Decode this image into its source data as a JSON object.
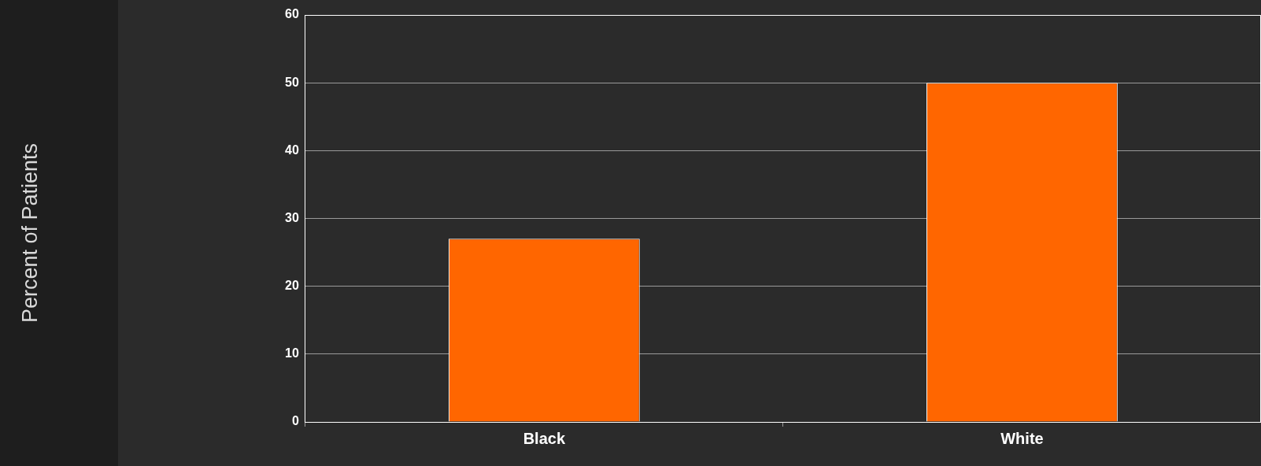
{
  "chart_data": {
    "type": "bar",
    "annotations": [
      "Percent of Patients"
    ],
    "categories": [
      "Black",
      "White"
    ],
    "values": [
      27,
      50
    ],
    "color": "#ff6600",
    "ylim": [
      0,
      60
    ],
    "yticks": [
      0,
      10,
      20,
      30,
      40,
      50,
      60
    ],
    "grid": "y"
  }
}
